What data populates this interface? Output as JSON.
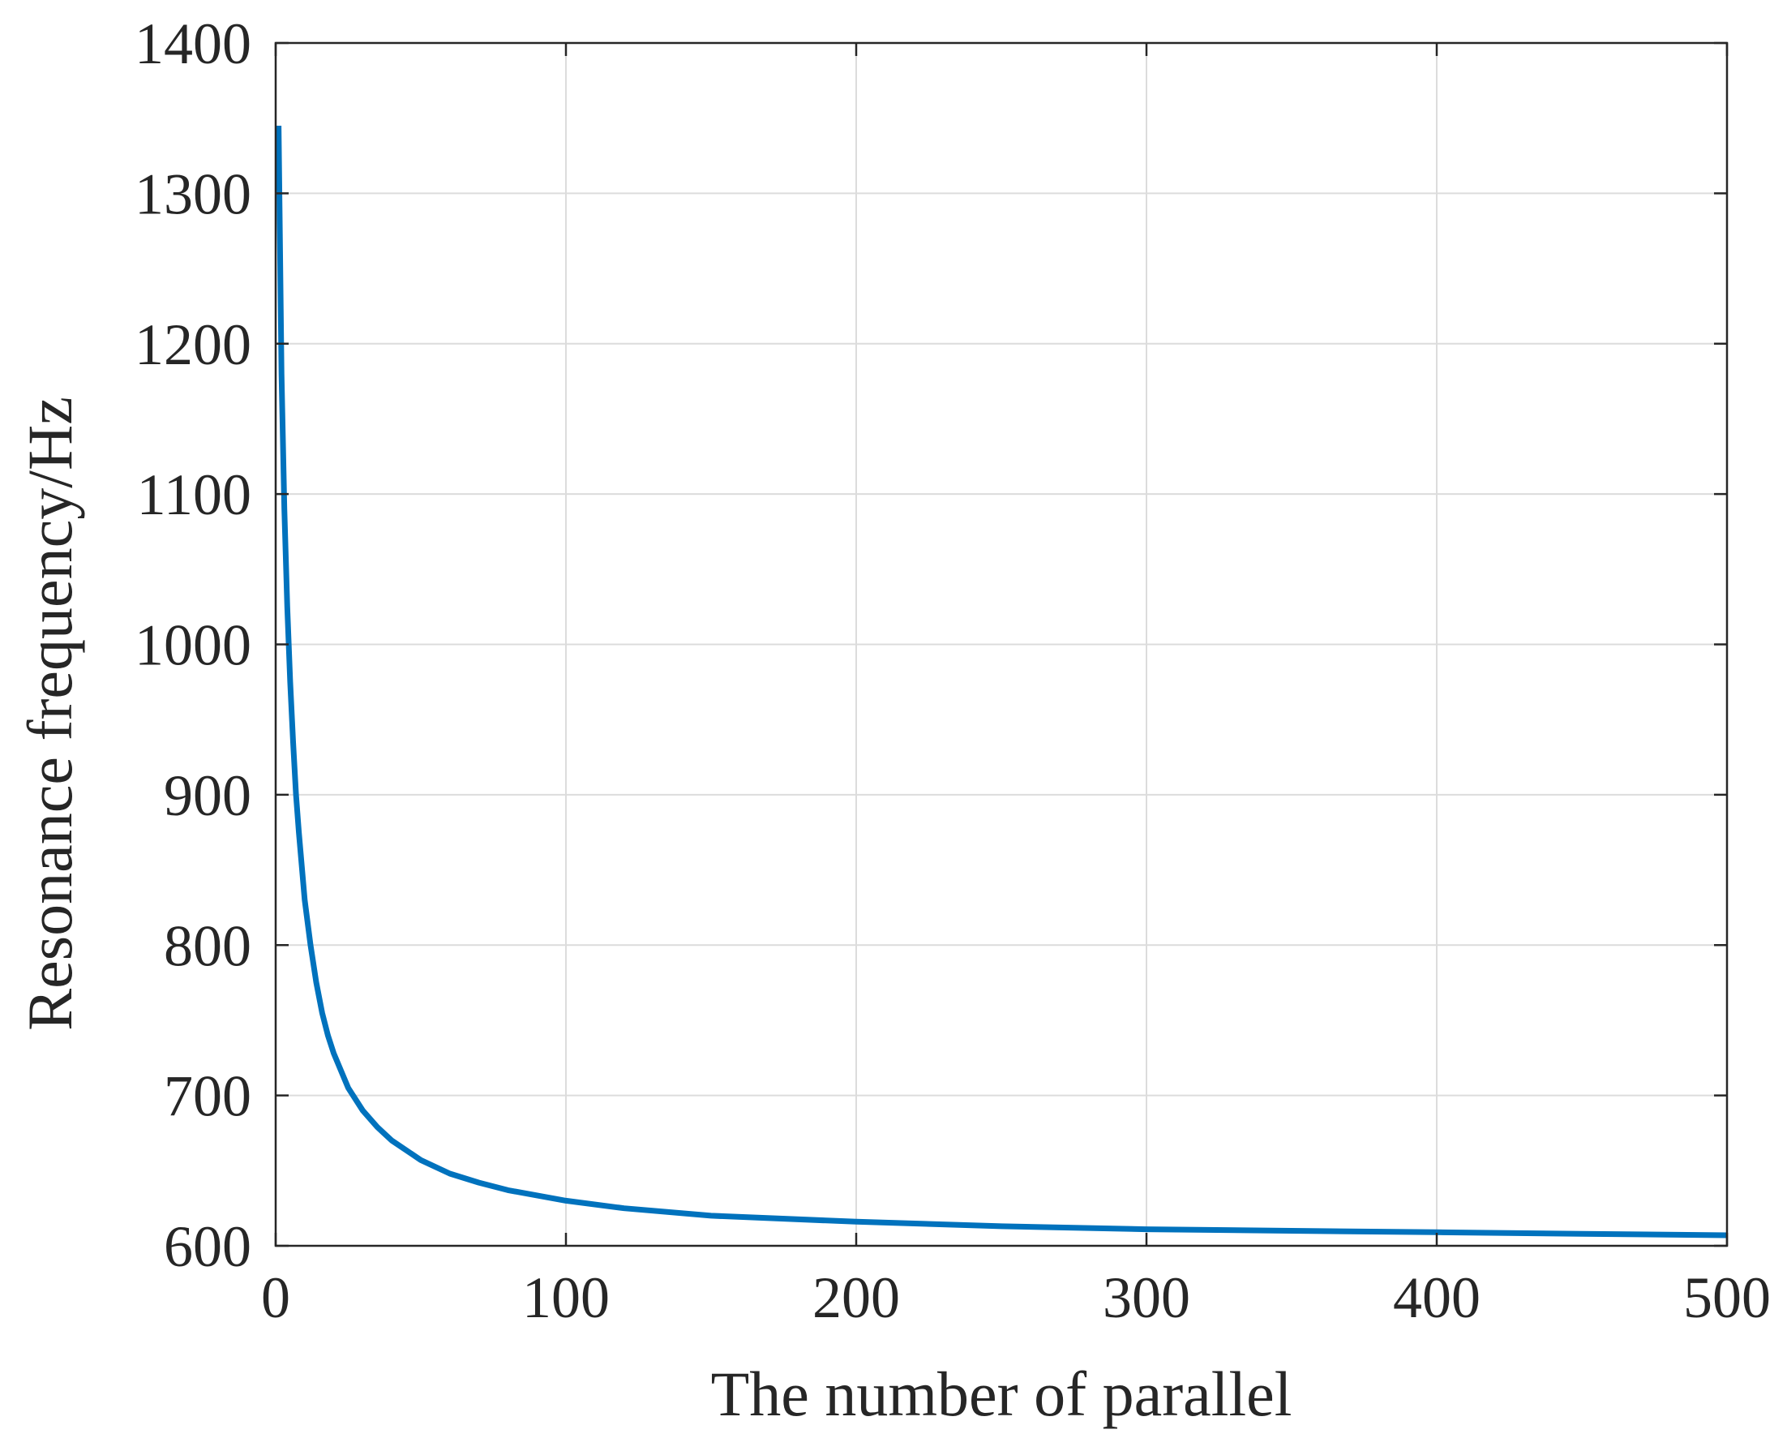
{
  "chart_data": {
    "type": "line",
    "title": "",
    "xlabel": "The number of parallel",
    "ylabel": "Resonance frequency/Hz",
    "xlim": [
      0,
      500
    ],
    "ylim": [
      600,
      1400
    ],
    "xticks": [
      0,
      100,
      200,
      300,
      400,
      500
    ],
    "xtick_labels": [
      "0",
      "100",
      "200",
      "300",
      "400",
      "500"
    ],
    "yticks": [
      600,
      700,
      800,
      900,
      1000,
      1100,
      1200,
      1300,
      1400
    ],
    "ytick_labels": [
      "600",
      "700",
      "800",
      "900",
      "1000",
      "1100",
      "1200",
      "1300",
      "1400"
    ],
    "grid": true,
    "series": [
      {
        "color": "#0072bd",
        "x": [
          1,
          2,
          3,
          4,
          5,
          6,
          7,
          8,
          10,
          12,
          14,
          16,
          18,
          20,
          25,
          30,
          35,
          40,
          50,
          60,
          70,
          80,
          100,
          120,
          150,
          200,
          250,
          300,
          350,
          400,
          450,
          500
        ],
        "y": [
          1345,
          1180,
          1090,
          1025,
          975,
          935,
          900,
          875,
          830,
          800,
          775,
          755,
          740,
          728,
          705,
          690,
          679,
          670,
          657,
          648,
          642,
          637,
          630,
          625,
          620,
          616,
          613,
          611,
          610,
          609,
          608,
          607
        ]
      }
    ]
  }
}
